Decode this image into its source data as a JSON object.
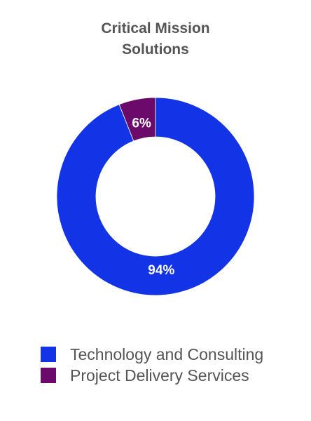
{
  "chart_data": {
    "type": "pie",
    "variant": "donut",
    "title_lines": [
      "Critical Mission",
      "Solutions"
    ],
    "slices": [
      {
        "label": "Technology and Consulting",
        "value": 94,
        "display": "94%",
        "color": "#1233e6"
      },
      {
        "label": "Project Delivery Services",
        "value": 6,
        "display": "6%",
        "color": "#6b0a6b"
      }
    ],
    "legend_position": "bottom"
  }
}
